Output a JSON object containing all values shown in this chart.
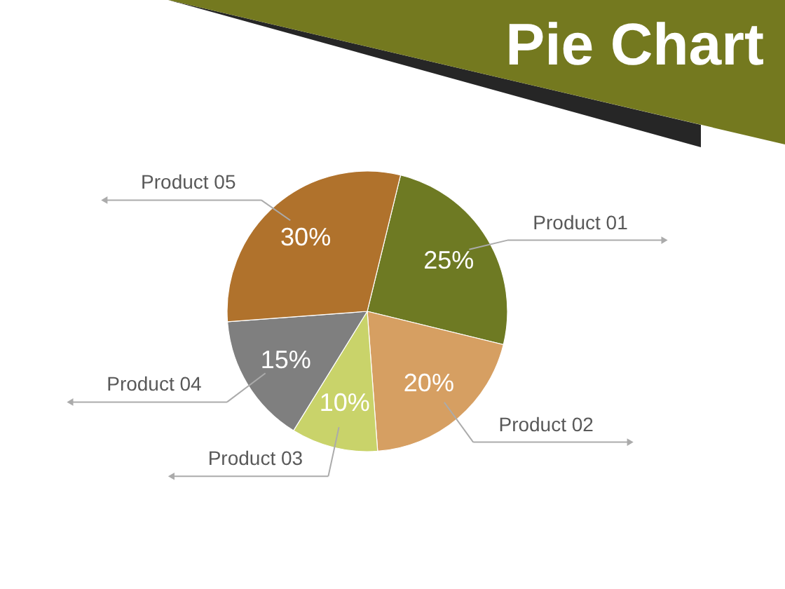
{
  "chart_data": {
    "type": "pie",
    "title": "Pie Chart",
    "categories": [
      "Product 01",
      "Product 02",
      "Product 03",
      "Product 04",
      "Product 05"
    ],
    "values": [
      25,
      20,
      10,
      15,
      30
    ],
    "colors": [
      "#6e7a23",
      "#d69f62",
      "#c9d36a",
      "#7f7f7f",
      "#b0722c"
    ],
    "value_labels": [
      "25%",
      "20%",
      "10%",
      "15%",
      "30%"
    ]
  }
}
